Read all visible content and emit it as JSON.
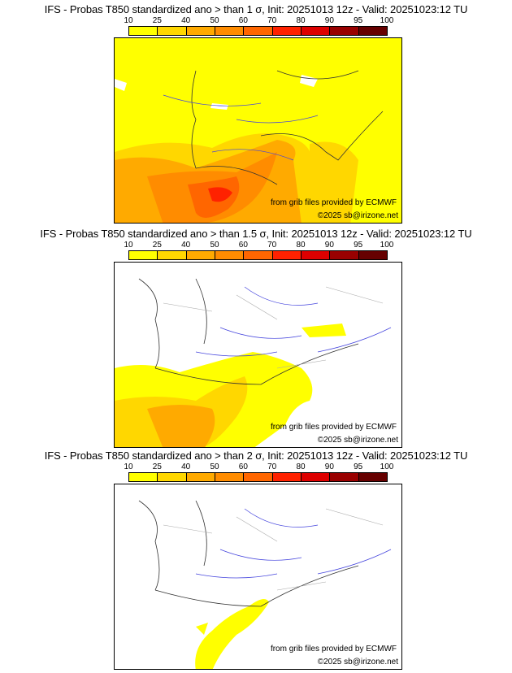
{
  "colorbar": {
    "labels": [
      "10",
      "25",
      "40",
      "50",
      "60",
      "70",
      "80",
      "90",
      "95",
      "100"
    ],
    "colors": [
      "#ffff00",
      "#ffd700",
      "#ffaa00",
      "#ff8c00",
      "#ff6600",
      "#ff2200",
      "#dd0000",
      "#990000",
      "#660000"
    ]
  },
  "panels": [
    {
      "title": "IFS - Probas T850  standardized ano > than 1 σ, Init: 20251013 12z - Valid: 20251023:12 TU",
      "source": "from grib files provided by ECMWF",
      "copyright": "©2025 sb@irizone.net"
    },
    {
      "title": "IFS - Probas T850  standardized ano > than 1.5 σ, Init: 20251013 12z - Valid: 20251023:12 TU",
      "source": "from grib files provided by ECMWF",
      "copyright": "©2025 sb@irizone.net"
    },
    {
      "title": "IFS - Probas T850  standardized ano > than 2 σ, Init: 20251013 12z - Valid: 20251023:12 TU",
      "source": "from grib files provided by ECMWF",
      "copyright": "©2025 sb@irizone.net"
    }
  ]
}
